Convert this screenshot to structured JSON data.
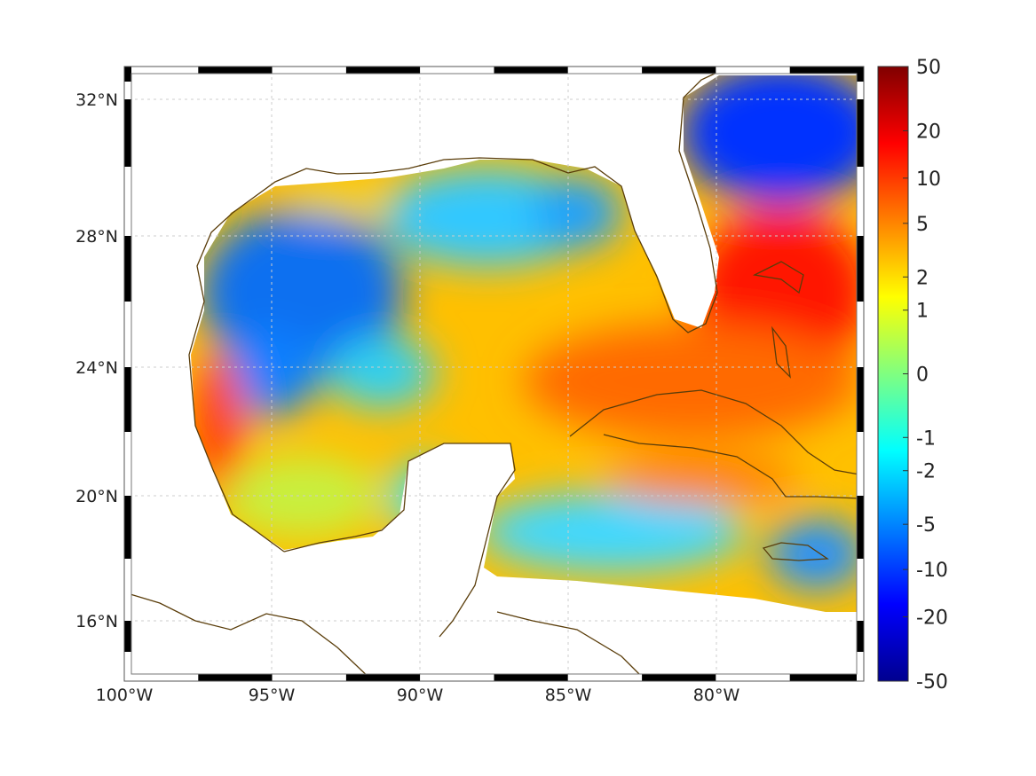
{
  "map": {
    "lon_ticks": [
      "100°W",
      "95°W",
      "90°W",
      "85°W",
      "80°W"
    ],
    "lat_ticks": [
      "32°N",
      "28°N",
      "24°N",
      "20°N",
      "16°N"
    ],
    "lon_range": [
      -100,
      -75
    ],
    "lat_range": [
      14,
      33
    ],
    "coast_color": "#5a3d0a"
  },
  "colorbar": {
    "ticks": [
      50,
      20,
      10,
      5,
      2,
      1,
      0,
      -1,
      -2,
      -5,
      -10,
      -20,
      -50
    ],
    "labels": [
      "50",
      "20",
      "10",
      "5",
      "2",
      "1",
      "0",
      "-1",
      "-2",
      "-5",
      "-10",
      "-20",
      "-50"
    ],
    "range": [
      -50,
      50
    ],
    "colormap": "jet"
  }
}
